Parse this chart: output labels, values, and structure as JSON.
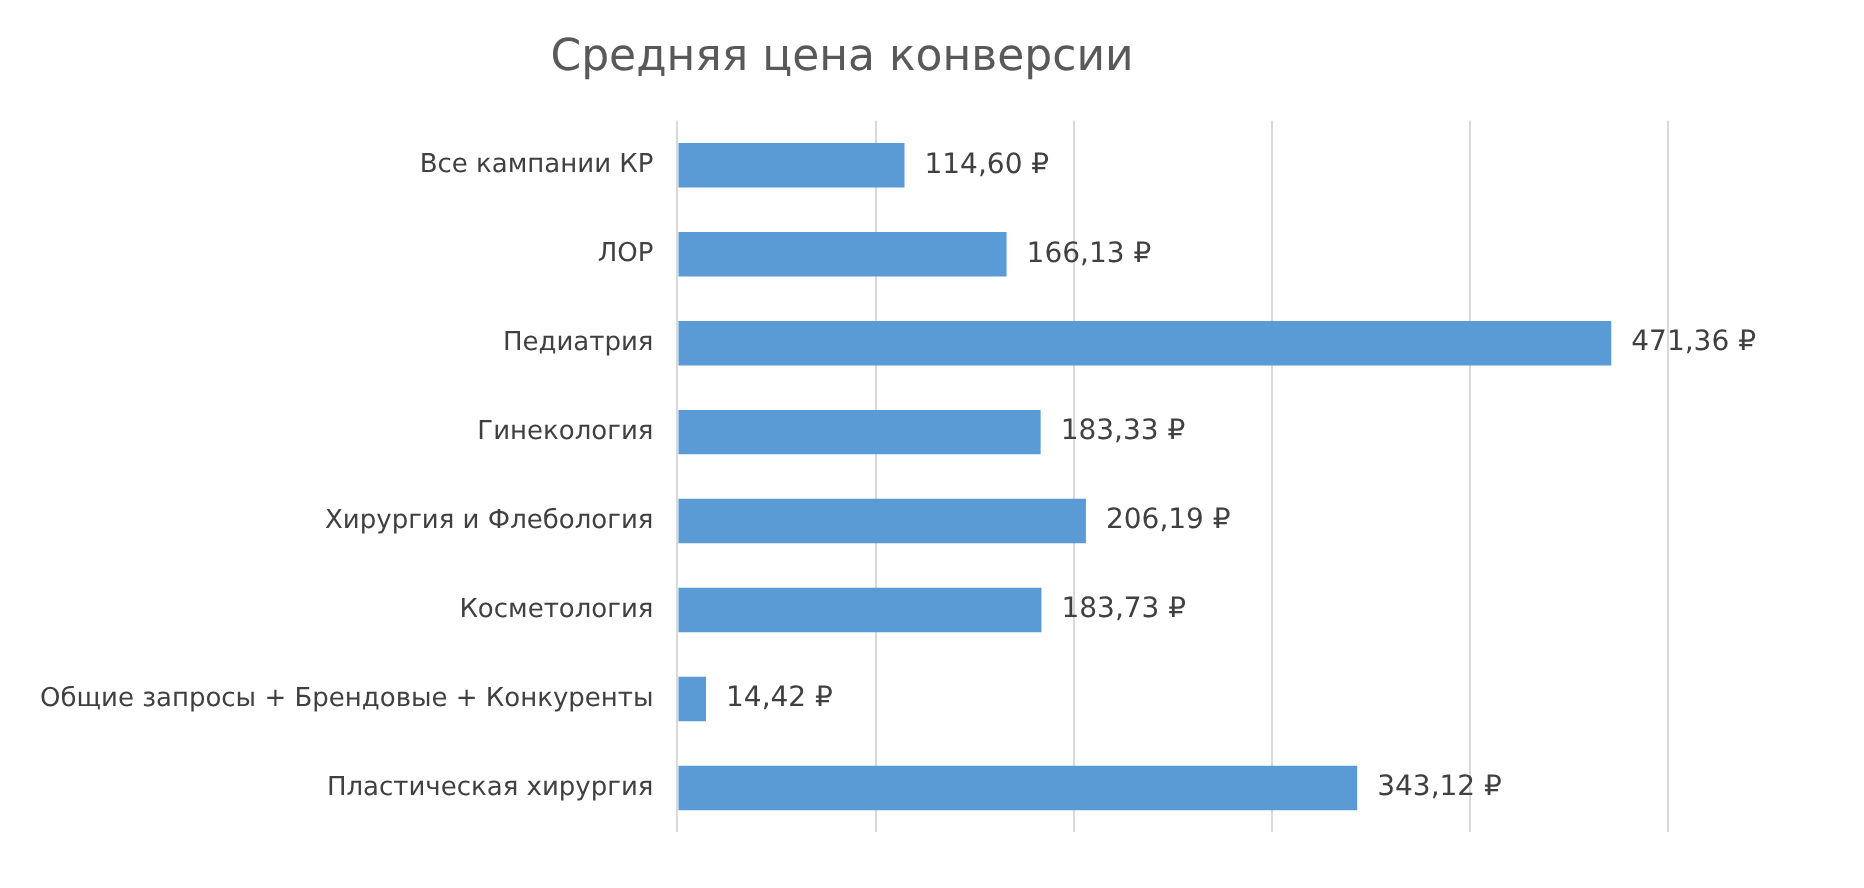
{
  "chart_data": {
    "type": "bar",
    "orientation": "horizontal",
    "title": "Средняя цена конверсии",
    "categories": [
      "Все кампании КР",
      "ЛОР",
      "Педиатрия",
      "Гинекология",
      "Хирургия и Флебология",
      "Косметология",
      "Общие запросы + Брендовые + Конкуренты",
      "Пластическая хирургия"
    ],
    "values": [
      114.6,
      166.13,
      471.36,
      183.33,
      206.19,
      183.73,
      14.42,
      343.12
    ],
    "value_labels": [
      "114,60 ₽",
      "166,13 ₽",
      "471,36 ₽",
      "183,33 ₽",
      "206,19 ₽",
      "183,73 ₽",
      "14,42 ₽",
      "343,12 ₽"
    ],
    "color": "#5b9bd5",
    "xlim": [
      0,
      500
    ],
    "xticks": [
      {
        "value": 0,
        "label": null
      },
      {
        "value": 100,
        "label": null
      },
      {
        "value": 200,
        "label": null
      },
      {
        "value": 300,
        "label": null
      },
      {
        "value": 400,
        "label": null
      },
      {
        "value": 500,
        "label": null
      }
    ],
    "grid": "x",
    "tick_labels": "y",
    "legend": false
  }
}
